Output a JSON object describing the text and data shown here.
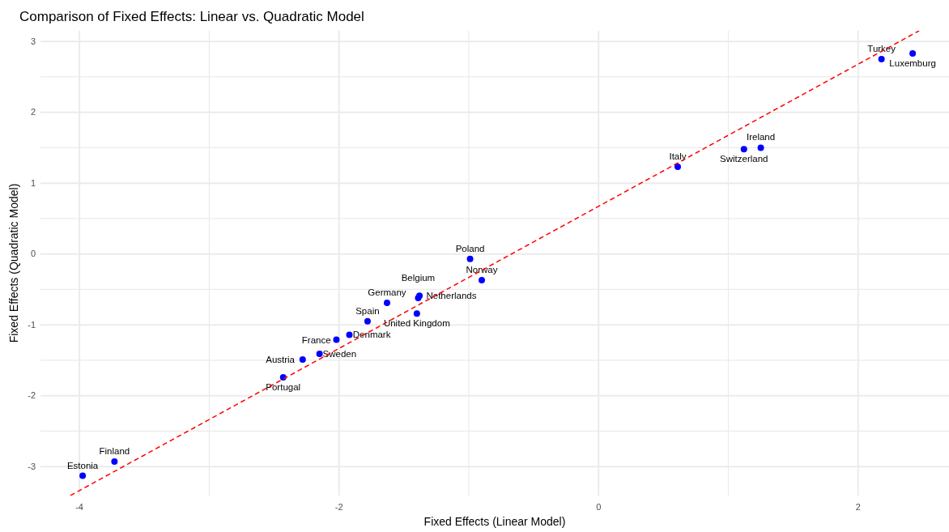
{
  "chart_data": {
    "type": "scatter",
    "title": "Comparison of Fixed Effects: Linear vs. Quadratic Model",
    "xlabel": "Fixed Effects (Linear Model)",
    "ylabel": "Fixed Effects (Quadratic Model)",
    "xlim": [
      -4.3,
      2.7
    ],
    "ylim": [
      -3.41,
      3.15
    ],
    "xticks": [
      -4,
      {
        "value": -3,
        "label": null
      },
      -2,
      {
        "value": -1,
        "label": null
      },
      0,
      {
        "value": 1,
        "label": null
      },
      2
    ],
    "yticks": [
      -3,
      {
        "value": -2.5,
        "label": null
      },
      -2,
      {
        "value": -1.5,
        "label": null
      },
      -1,
      {
        "value": -0.5,
        "label": null
      },
      0,
      {
        "value": 0.5,
        "label": null
      },
      1,
      {
        "value": 1.5,
        "label": null
      },
      2,
      {
        "value": 2.5,
        "label": null
      },
      3
    ],
    "grid": true,
    "marker": "circle",
    "series": [
      {
        "type": "scatter",
        "color": "#0000ff",
        "x": [
          -3.975,
          -3.73,
          -2.43,
          -2.28,
          -2.15,
          -2.02,
          -1.92,
          -1.78,
          -1.63,
          -1.4,
          -1.38,
          -1.39,
          -0.99,
          -0.9,
          0.61,
          1.12,
          1.25,
          2.18,
          2.42
        ],
        "values": [
          -3.13,
          -2.93,
          -1.74,
          -1.49,
          -1.41,
          -1.21,
          -1.14,
          -0.95,
          -0.69,
          -0.84,
          -0.59,
          -0.62,
          -0.07,
          -0.37,
          1.23,
          1.48,
          1.5,
          2.75,
          2.83
        ]
      },
      {
        "type": "line",
        "color": "#ff0000",
        "line_style": "dashed",
        "marker": "none",
        "x": [
          -4.07,
          2.47
        ],
        "values": [
          -3.41,
          3.15
        ]
      }
    ],
    "annotations": [
      {
        "text": "Estonia",
        "x": -3.975,
        "y": -3.13
      },
      {
        "text": "Finland",
        "x": -3.73,
        "y": -2.93
      },
      {
        "text": "Portugal",
        "x": -2.43,
        "y": -1.74
      },
      {
        "text": "Austria",
        "x": -2.28,
        "y": -1.49
      },
      {
        "text": "Sweden",
        "x": -2.15,
        "y": -1.41
      },
      {
        "text": "France",
        "x": -2.02,
        "y": -1.21
      },
      {
        "text": "Denmark",
        "x": -1.92,
        "y": -1.14
      },
      {
        "text": "Spain",
        "x": -1.78,
        "y": -0.95
      },
      {
        "text": "Germany",
        "x": -1.63,
        "y": -0.69
      },
      {
        "text": "United Kingdom",
        "x": -1.4,
        "y": -0.84
      },
      {
        "text": "Netherlands",
        "x": -1.38,
        "y": -0.59
      },
      {
        "text": "Belgium",
        "x": -1.39,
        "y": -0.62
      },
      {
        "text": "Poland",
        "x": -0.99,
        "y": -0.07
      },
      {
        "text": "Norway",
        "x": -0.9,
        "y": -0.37
      },
      {
        "text": "Italy",
        "x": 0.61,
        "y": 1.23
      },
      {
        "text": "Switzerland",
        "x": 1.12,
        "y": 1.48
      },
      {
        "text": "Ireland",
        "x": 1.25,
        "y": 1.5
      },
      {
        "text": "Turkey",
        "x": 2.18,
        "y": 2.75
      },
      {
        "text": "Luxemburg",
        "x": 2.42,
        "y": 2.83
      }
    ]
  }
}
